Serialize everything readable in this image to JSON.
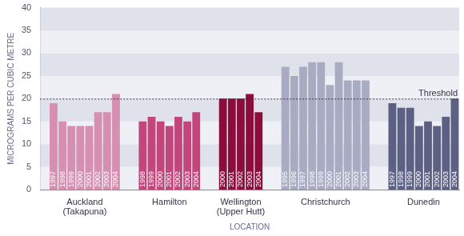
{
  "chart_data": {
    "type": "bar",
    "y_label": "MICROGRAMS PER CUBIC METRE",
    "x_label": "LOCATION",
    "ylim": [
      0,
      40
    ],
    "yticks": [
      0,
      5,
      10,
      15,
      20,
      25,
      30,
      35,
      40
    ],
    "grid": true,
    "series": [
      {
        "name": "Auckland (Takapuna)",
        "color": "#d68fb0",
        "categories": [
          "1997",
          "1998",
          "1999",
          "2000",
          "2001",
          "2002",
          "2003",
          "2004"
        ],
        "values": [
          19,
          15,
          14,
          14,
          14,
          17,
          17,
          21
        ]
      },
      {
        "name": "Hamilton",
        "color": "#c2467b",
        "categories": [
          "1998",
          "1999",
          "2000",
          "2001",
          "2002",
          "2003",
          "2004"
        ],
        "values": [
          15,
          16,
          15,
          14,
          16,
          15,
          17
        ]
      },
      {
        "name": "Wellington (Upper Hutt)",
        "color": "#8c0d3c",
        "categories": [
          "2000",
          "2001",
          "2002",
          "2003",
          "2004"
        ],
        "values": [
          20,
          20,
          20,
          21,
          17
        ]
      },
      {
        "name": "Christchurch",
        "color": "#a8abc2",
        "categories": [
          "1995",
          "1996",
          "1997",
          "1998",
          "1999",
          "2000",
          "2001",
          "2002",
          "2003",
          "2004"
        ],
        "values": [
          27,
          25,
          27,
          28,
          28,
          23,
          28,
          24,
          24,
          24
        ]
      },
      {
        "name": "Dunedin",
        "color": "#5c6083",
        "categories": [
          "1997",
          "1998",
          "1999",
          "2000",
          "2001",
          "2002",
          "2003",
          "2004"
        ],
        "values": [
          19,
          18,
          18,
          14,
          15,
          14,
          16,
          20
        ]
      }
    ],
    "annotations": [
      {
        "label": "Threshold",
        "y": 20,
        "line_style": "dashed"
      }
    ]
  }
}
